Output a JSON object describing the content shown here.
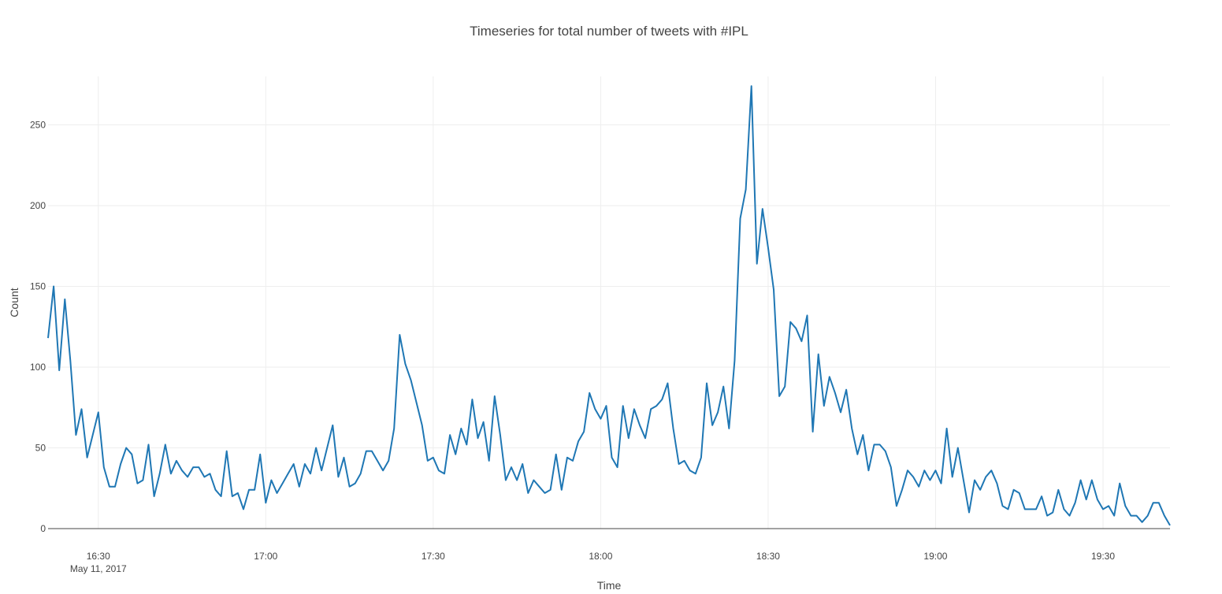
{
  "chart_data": {
    "type": "line",
    "title": "Timeseries for total number of tweets with #IPL",
    "xlabel": "Time",
    "ylabel": "Count",
    "date_label": "May 11, 2017",
    "x_start": "16:21",
    "x_step_minutes": 1,
    "xlim": [
      "16:21",
      "19:42"
    ],
    "ylim": [
      0,
      280
    ],
    "x_ticks": [
      "16:30",
      "17:00",
      "17:30",
      "18:00",
      "18:30",
      "19:00",
      "19:30"
    ],
    "y_ticks": [
      0,
      50,
      100,
      150,
      200,
      250
    ],
    "grid": true,
    "legend": "none",
    "line_color": "#1f77b4",
    "series": [
      {
        "values": [
          118,
          150,
          98,
          142,
          104,
          58,
          74,
          44,
          58,
          72,
          38,
          26,
          26,
          40,
          50,
          46,
          28,
          30,
          52,
          20,
          34,
          52,
          34,
          42,
          36,
          32,
          38,
          38,
          32,
          34,
          24,
          20,
          48,
          20,
          22,
          12,
          24,
          24,
          46,
          16,
          30,
          22,
          28,
          34,
          40,
          26,
          40,
          34,
          50,
          36,
          50,
          64,
          32,
          44,
          26,
          28,
          34,
          48,
          48,
          42,
          36,
          42,
          62,
          120,
          102,
          92,
          78,
          64,
          42,
          44,
          36,
          34,
          58,
          46,
          62,
          52,
          80,
          56,
          66,
          42,
          82,
          58,
          30,
          38,
          30,
          40,
          22,
          30,
          26,
          22,
          24,
          46,
          24,
          44,
          42,
          54,
          60,
          84,
          74,
          68,
          76,
          44,
          38,
          76,
          56,
          74,
          64,
          56,
          74,
          76,
          80,
          90,
          62,
          40,
          42,
          36,
          34,
          44,
          90,
          64,
          72,
          88,
          62,
          104,
          192,
          210,
          274,
          164,
          198,
          174,
          148,
          82,
          88,
          128,
          124,
          116,
          132,
          60,
          108,
          76,
          94,
          84,
          72,
          86,
          62,
          46,
          58,
          36,
          52,
          52,
          48,
          38,
          14,
          24,
          36,
          32,
          26,
          36,
          30,
          36,
          28,
          62,
          32,
          50,
          30,
          10,
          30,
          24,
          32,
          36,
          28,
          14,
          12,
          24,
          22,
          12,
          12,
          12,
          20,
          8,
          10,
          24,
          12,
          8,
          16,
          30,
          18,
          30,
          18,
          12,
          14,
          8,
          28,
          14,
          8,
          8,
          4,
          8,
          16,
          16,
          8,
          2
        ]
      }
    ]
  }
}
